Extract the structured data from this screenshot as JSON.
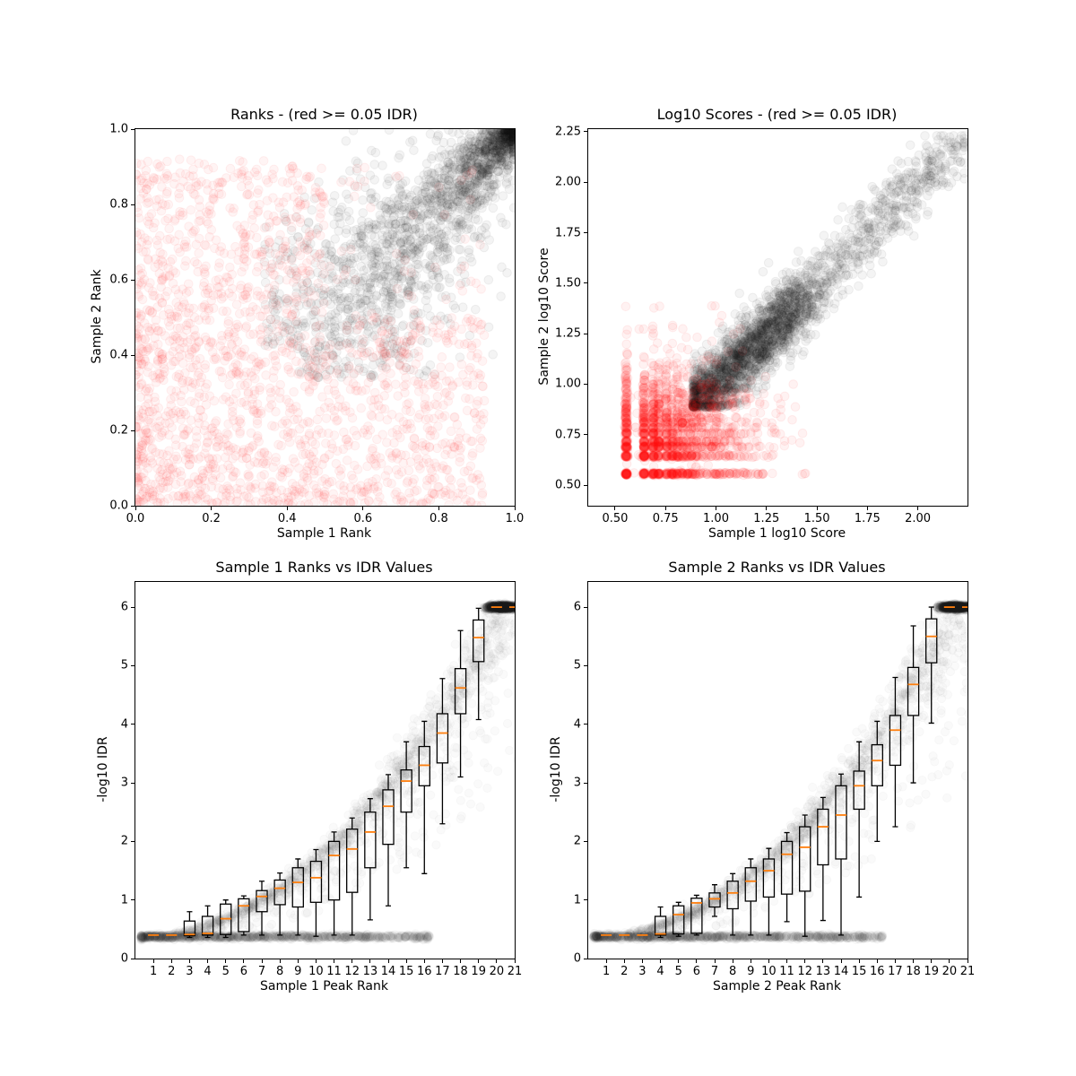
{
  "figure": {
    "background": "#ffffff",
    "median_color": "#ff7f0e",
    "box_color": "#000000",
    "reproducible_color": "#000000",
    "irreproducible_color": "#ff0000"
  },
  "chart_data": [
    {
      "name": "ranks-scatter",
      "type": "scatter",
      "title": "Ranks - (red >= 0.05 IDR)",
      "xlabel": "Sample 1 Rank",
      "ylabel": "Sample 2 Rank",
      "xlim": [
        0.0,
        1.0
      ],
      "ylim": [
        0.0,
        1.0
      ],
      "xticks": {
        "vals": [
          0.0,
          0.2,
          0.4,
          0.6,
          0.8,
          1.0
        ],
        "labels": [
          "0.0",
          "0.2",
          "0.4",
          "0.6",
          "0.8",
          "1.0"
        ]
      },
      "yticks": {
        "vals": [
          0.0,
          0.2,
          0.4,
          0.6,
          0.8,
          1.0
        ],
        "labels": [
          "0.0",
          "0.2",
          "0.4",
          "0.6",
          "0.8",
          "1.0"
        ]
      },
      "grid": false,
      "legend": "none",
      "series": [
        {
          "name": "reproducible-peaks-idr-lt-0.05",
          "kind": "rank_diagonal",
          "n": 3000,
          "color": "#000000",
          "fill_alpha": 0.045,
          "edge_alpha": 0.06,
          "radius": 4.8,
          "diag_start": 0.34,
          "spread": 0.27,
          "dense_at": [
            1.0,
            1.0
          ]
        },
        {
          "name": "irreproducible-peaks-idr-ge-0.05",
          "kind": "rank_lower",
          "n": 2200,
          "color": "#ff0000",
          "fill_alpha": 0.045,
          "edge_alpha": 0.06,
          "radius": 4.8,
          "max_rank": 0.92,
          "pow": 1.25,
          "mix_into_band": 0.18
        }
      ]
    },
    {
      "name": "log10-scores-scatter",
      "type": "scatter",
      "title": "Log10 Scores - (red >= 0.05 IDR)",
      "xlabel": "Sample 1 log10 Score",
      "ylabel": "Sample 2 log10 Score",
      "xlim": [
        0.367,
        2.246
      ],
      "ylim": [
        0.398,
        2.263
      ],
      "xticks": {
        "vals": [
          0.5,
          0.75,
          1.0,
          1.25,
          1.5,
          1.75,
          2.0
        ],
        "labels": [
          "0.50",
          "0.75",
          "1.00",
          "1.25",
          "1.50",
          "1.75",
          "2.00"
        ]
      },
      "yticks": {
        "vals": [
          0.5,
          0.75,
          1.0,
          1.25,
          1.5,
          1.75,
          2.0,
          2.25
        ],
        "labels": [
          "0.50",
          "0.75",
          "1.00",
          "1.25",
          "1.50",
          "1.75",
          "2.00",
          "2.25"
        ]
      },
      "grid": false,
      "legend": "none",
      "series": [
        {
          "name": "reproducible-scores-idr-lt-0.05",
          "kind": "score_diagonal",
          "n": 2600,
          "color": "#000000",
          "fill_alpha": 0.045,
          "edge_alpha": 0.06,
          "radius": 4.8,
          "corner": 0.885,
          "max_score": 2.2,
          "sd": 0.065
        },
        {
          "name": "irreproducible-scores-idr-ge-0.05",
          "kind": "score_grid",
          "n": 2100,
          "color": "#ff0000",
          "fill_alpha": 0.05,
          "edge_alpha": 0.065,
          "radius": 4.8,
          "levels": [
            0.556,
            0.644,
            0.69,
            0.716,
            0.756,
            0.785,
            0.81,
            0.833,
            0.857,
            0.88,
            0.903,
            0.929,
            0.954,
            0.978,
            1.0,
            1.021,
            1.041,
            1.072,
            1.1,
            1.146,
            1.204,
            1.276,
            1.38
          ],
          "level_decay": 0.2,
          "jitter": 0.0035,
          "smear_prob": 0.25,
          "max_score": 1.45
        }
      ]
    },
    {
      "name": "sample1-rank-vs-idr-boxplot",
      "type": "boxplot_with_scatter",
      "title": "Sample 1 Ranks vs IDR Values",
      "xlabel": "Sample 1 Peak Rank",
      "ylabel": "-log10 IDR",
      "xlim": [
        0,
        21
      ],
      "ylim": [
        0,
        6.43
      ],
      "xticks": {
        "vals": [
          1,
          2,
          3,
          4,
          5,
          6,
          7,
          8,
          9,
          10,
          11,
          12,
          13,
          14,
          15,
          16,
          17,
          18,
          19,
          20,
          21
        ],
        "labels": [
          "1",
          "2",
          "3",
          "4",
          "5",
          "6",
          "7",
          "8",
          "9",
          "10",
          "11",
          "12",
          "13",
          "14",
          "15",
          "16",
          "17",
          "18",
          "19",
          "20",
          "21"
        ]
      },
      "yticks": {
        "vals": [
          0,
          1,
          2,
          3,
          4,
          5,
          6
        ],
        "labels": [
          "0",
          "1",
          "2",
          "3",
          "4",
          "5",
          "6"
        ]
      },
      "grid": false,
      "legend": "none",
      "box_width": 0.6,
      "box_positions": [
        1,
        2,
        3,
        4,
        5,
        6,
        7,
        8,
        9,
        10,
        11,
        12,
        13,
        14,
        15,
        16,
        17,
        18,
        19,
        20,
        21
      ],
      "box_stats_order": [
        "whisker_low",
        "q1",
        "median",
        "q3",
        "whisker_high"
      ],
      "box_stats": [
        [
          0.4,
          0.4,
          0.4,
          0.4,
          0.4
        ],
        [
          0.4,
          0.4,
          0.4,
          0.4,
          0.4
        ],
        [
          0.36,
          0.39,
          0.41,
          0.64,
          0.8
        ],
        [
          0.36,
          0.4,
          0.43,
          0.72,
          0.9
        ],
        [
          0.36,
          0.41,
          0.68,
          0.93,
          1.0
        ],
        [
          0.4,
          0.46,
          0.9,
          1.02,
          1.07
        ],
        [
          0.4,
          0.8,
          1.06,
          1.16,
          1.32
        ],
        [
          0.4,
          0.92,
          1.2,
          1.34,
          1.46
        ],
        [
          0.4,
          0.88,
          1.3,
          1.55,
          1.7
        ],
        [
          0.38,
          0.96,
          1.38,
          1.66,
          1.86
        ],
        [
          0.4,
          1.0,
          1.76,
          2.0,
          2.16
        ],
        [
          0.4,
          1.13,
          1.87,
          2.21,
          2.4
        ],
        [
          0.66,
          1.55,
          2.16,
          2.5,
          2.73
        ],
        [
          0.9,
          1.95,
          2.6,
          2.88,
          3.14
        ],
        [
          1.55,
          2.5,
          3.03,
          3.22,
          3.7
        ],
        [
          1.45,
          2.95,
          3.3,
          3.62,
          4.05
        ],
        [
          2.3,
          3.34,
          3.85,
          4.18,
          4.78
        ],
        [
          3.1,
          4.18,
          4.62,
          4.95,
          5.6
        ],
        [
          4.08,
          5.07,
          5.48,
          5.78,
          5.98
        ],
        [
          6.0,
          6.0,
          6.0,
          6.0,
          6.0
        ],
        [
          6.0,
          6.0,
          6.0,
          6.0,
          6.0
        ]
      ],
      "series": [
        {
          "name": "idr-floor-band",
          "kind": "idr_floor",
          "n": 1300,
          "color": "#000000",
          "fill_alpha": 0.018,
          "edge_alpha": 0.026,
          "radius": 4.6,
          "y_level": 0.372,
          "x_max": 16
        },
        {
          "name": "idr-rising-band",
          "kind": "idr_curve",
          "n": 1500,
          "color": "#000000",
          "fill_alpha": 0.018,
          "edge_alpha": 0.026,
          "radius": 4.6,
          "base": 0.37,
          "coef": 0.01385
        },
        {
          "name": "idr-ceiling-blob",
          "kind": "idr_ceiling",
          "n": 750,
          "color": "#000000",
          "fill_alpha": 0.03,
          "edge_alpha": 0.04,
          "radius": 4.6,
          "y_level": 6.0,
          "x_center": 20.3
        }
      ]
    },
    {
      "name": "sample2-rank-vs-idr-boxplot",
      "type": "boxplot_with_scatter",
      "title": "Sample 2 Ranks vs IDR Values",
      "xlabel": "Sample 2 Peak Rank",
      "ylabel": "-log10 IDR",
      "xlim": [
        0,
        21
      ],
      "ylim": [
        0,
        6.43
      ],
      "xticks": {
        "vals": [
          1,
          2,
          3,
          4,
          5,
          6,
          7,
          8,
          9,
          10,
          11,
          12,
          13,
          14,
          15,
          16,
          17,
          18,
          19,
          20,
          21
        ],
        "labels": [
          "1",
          "2",
          "3",
          "4",
          "5",
          "6",
          "7",
          "8",
          "9",
          "10",
          "11",
          "12",
          "13",
          "14",
          "15",
          "16",
          "17",
          "18",
          "19",
          "20",
          "21"
        ]
      },
      "yticks": {
        "vals": [
          0,
          1,
          2,
          3,
          4,
          5,
          6
        ],
        "labels": [
          "0",
          "1",
          "2",
          "3",
          "4",
          "5",
          "6"
        ]
      },
      "grid": false,
      "legend": "none",
      "box_width": 0.6,
      "box_positions": [
        1,
        2,
        3,
        4,
        5,
        6,
        7,
        8,
        9,
        10,
        11,
        12,
        13,
        14,
        15,
        16,
        17,
        18,
        19,
        20,
        21
      ],
      "box_stats_order": [
        "whisker_low",
        "q1",
        "median",
        "q3",
        "whisker_high"
      ],
      "box_stats": [
        [
          0.4,
          0.4,
          0.4,
          0.4,
          0.4
        ],
        [
          0.4,
          0.4,
          0.4,
          0.4,
          0.4
        ],
        [
          0.4,
          0.4,
          0.4,
          0.4,
          0.4
        ],
        [
          0.36,
          0.4,
          0.42,
          0.72,
          0.88
        ],
        [
          0.38,
          0.42,
          0.75,
          0.9,
          0.96
        ],
        [
          0.4,
          0.43,
          0.95,
          1.03,
          1.08
        ],
        [
          0.72,
          0.88,
          1.02,
          1.12,
          1.26
        ],
        [
          0.4,
          0.85,
          1.12,
          1.32,
          1.45
        ],
        [
          0.4,
          0.98,
          1.32,
          1.55,
          1.7
        ],
        [
          0.4,
          1.05,
          1.5,
          1.7,
          1.88
        ],
        [
          0.63,
          1.1,
          1.78,
          2.0,
          2.15
        ],
        [
          0.38,
          1.15,
          1.9,
          2.25,
          2.45
        ],
        [
          0.65,
          1.6,
          2.25,
          2.55,
          2.75
        ],
        [
          0.4,
          1.7,
          2.45,
          2.95,
          3.15
        ],
        [
          1.05,
          2.55,
          2.95,
          3.2,
          3.7
        ],
        [
          2.0,
          2.95,
          3.38,
          3.65,
          4.05
        ],
        [
          2.25,
          3.3,
          3.9,
          4.15,
          4.8
        ],
        [
          3.0,
          4.15,
          4.68,
          4.97,
          5.68
        ],
        [
          4.02,
          5.05,
          5.5,
          5.8,
          6.0
        ],
        [
          6.0,
          6.0,
          6.0,
          6.0,
          6.0
        ],
        [
          6.0,
          6.0,
          6.0,
          6.0,
          6.0
        ]
      ],
      "series": [
        {
          "name": "idr-floor-band",
          "kind": "idr_floor",
          "n": 1300,
          "color": "#000000",
          "fill_alpha": 0.018,
          "edge_alpha": 0.026,
          "radius": 4.6,
          "y_level": 0.372,
          "x_max": 16
        },
        {
          "name": "idr-rising-band",
          "kind": "idr_curve",
          "n": 1500,
          "color": "#000000",
          "fill_alpha": 0.018,
          "edge_alpha": 0.026,
          "radius": 4.6,
          "base": 0.37,
          "coef": 0.01385
        },
        {
          "name": "idr-ceiling-blob",
          "kind": "idr_ceiling",
          "n": 750,
          "color": "#000000",
          "fill_alpha": 0.03,
          "edge_alpha": 0.04,
          "radius": 4.6,
          "y_level": 6.0,
          "x_center": 20.3
        }
      ]
    }
  ]
}
